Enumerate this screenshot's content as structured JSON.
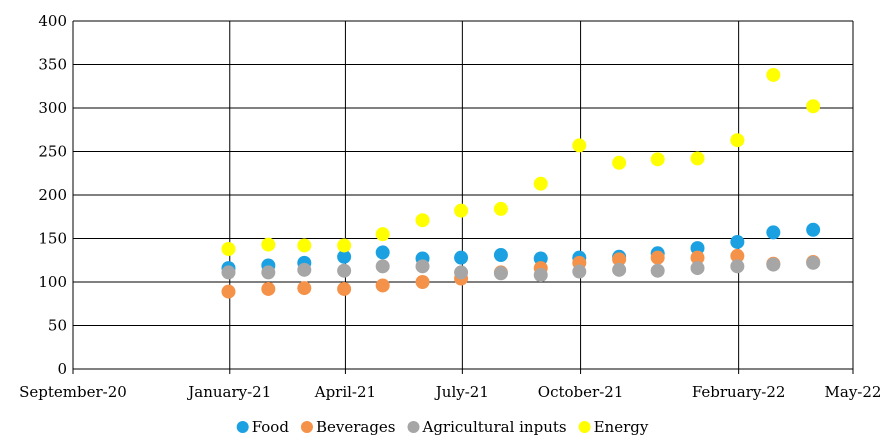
{
  "chart_data": {
    "type": "scatter",
    "title": "",
    "xlabel": "",
    "ylabel": "",
    "x_axis": {
      "type": "date",
      "min": "2020-09-01",
      "max": "2022-05-01",
      "ticks": [
        "2020-09-01",
        "2021-01-01",
        "2021-04-01",
        "2021-07-01",
        "2021-10-01",
        "2022-02-01",
        "2022-05-01"
      ],
      "tick_labels": [
        "September-20",
        "January-21",
        "April-21",
        "July-21",
        "October-21",
        "February-22",
        "May-22"
      ]
    },
    "y_axis": {
      "min": 0,
      "max": 400,
      "ticks": [
        0,
        50,
        100,
        150,
        200,
        250,
        300,
        350,
        400
      ],
      "tick_labels": [
        "0",
        "50",
        "100",
        "150",
        "200",
        "250",
        "300",
        "350",
        "400"
      ]
    },
    "grid": true,
    "legend": "bottom",
    "x": [
      "2020-12-31",
      "2021-01-31",
      "2021-02-28",
      "2021-03-31",
      "2021-04-30",
      "2021-05-31",
      "2021-06-30",
      "2021-07-31",
      "2021-08-31",
      "2021-09-30",
      "2021-10-31",
      "2021-11-30",
      "2021-12-31",
      "2022-01-31",
      "2022-02-28",
      "2022-03-31"
    ],
    "series": [
      {
        "name": "Food",
        "color": "#1ba1e2",
        "values": [
          116,
          119,
          122,
          129,
          134,
          127,
          128,
          131,
          127,
          128,
          129,
          133,
          139,
          146,
          157,
          160
        ]
      },
      {
        "name": "Beverages",
        "color": "#f5924a",
        "values": [
          89,
          92,
          93,
          92,
          96,
          100,
          104,
          111,
          116,
          122,
          126,
          128,
          128,
          130,
          121,
          123
        ]
      },
      {
        "name": "Agricultural inputs",
        "color": "#a6a6a6",
        "values": [
          111,
          111,
          114,
          113,
          118,
          118,
          111,
          110,
          108,
          112,
          114,
          113,
          116,
          118,
          120,
          122
        ]
      },
      {
        "name": "Energy",
        "color": "#ffff00",
        "values": [
          138,
          143,
          142,
          142,
          155,
          171,
          182,
          184,
          213,
          257,
          237,
          241,
          242,
          263,
          338,
          302
        ]
      }
    ]
  }
}
